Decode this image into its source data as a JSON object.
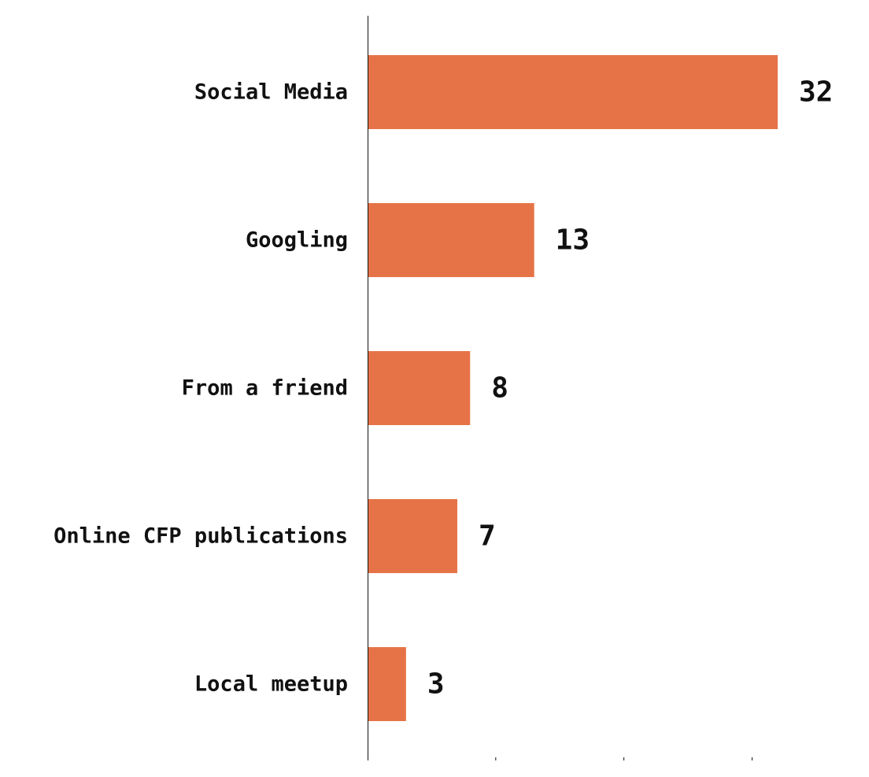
{
  "chart_data": {
    "type": "bar",
    "orientation": "horizontal",
    "categories": [
      "Social Media",
      "Googling",
      "From a friend",
      "Online CFP publications",
      "Local meetup"
    ],
    "values": [
      32,
      13,
      8,
      7,
      3
    ],
    "value_labels": [
      "32",
      "13",
      "8",
      "7",
      "3"
    ],
    "bar_color": "#E67347",
    "xlim": [
      0,
      32
    ],
    "grid": false,
    "legend": "none"
  }
}
